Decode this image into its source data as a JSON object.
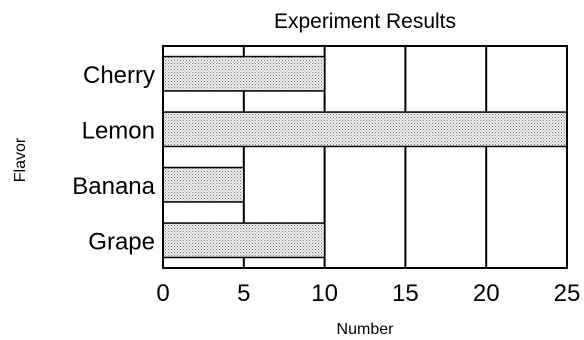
{
  "chart_data": {
    "type": "bar",
    "orientation": "horizontal",
    "title": "Experiment Results",
    "xlabel": "Number",
    "ylabel": "Flavor",
    "categories": [
      "Cherry",
      "Lemon",
      "Banana",
      "Grape"
    ],
    "values": [
      10,
      25,
      5,
      10
    ],
    "xlim": [
      0,
      25
    ],
    "xticks": [
      "0",
      "5",
      "10",
      "15",
      "20",
      "25"
    ],
    "grid": "vertical",
    "legend": "none",
    "bar_fill": "dotted-gray"
  }
}
